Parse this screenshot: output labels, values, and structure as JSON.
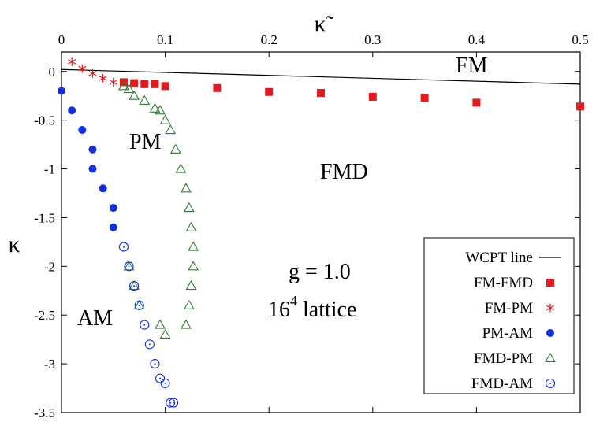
{
  "chart_data": {
    "type": "scatter",
    "title": "",
    "xlabel": "κ̃",
    "ylabel": "κ",
    "xlim": [
      0,
      0.5
    ],
    "ylim": [
      -3.5,
      0.2
    ],
    "xticks": [
      "0",
      "0.1",
      "0.2",
      "0.3",
      "0.4",
      "0.5"
    ],
    "yticks": [
      "0",
      "-0.5",
      "-1",
      "-1.5",
      "-2",
      "-2.5",
      "-3",
      "-3.5"
    ],
    "x_axis_position": "top",
    "grid": false,
    "legend_position": "bottom-right",
    "region_labels": [
      "FM",
      "FMD",
      "PM",
      "AM"
    ],
    "annotation_line1": "g = 1.0",
    "annotation_lattice": "16",
    "annotation_superscript": "4",
    "annotation_lattice_suffix": " lattice",
    "series": [
      {
        "name": "WCPT line",
        "marker": "line",
        "color": "#000000",
        "x": [
          0,
          0.5
        ],
        "y": [
          0.02,
          -0.13
        ]
      },
      {
        "name": "FM-FMD",
        "marker": "filled-square",
        "color": "#e41a1c",
        "x": [
          0.06,
          0.07,
          0.08,
          0.09,
          0.1,
          0.15,
          0.2,
          0.25,
          0.3,
          0.35,
          0.4,
          0.5
        ],
        "y": [
          -0.11,
          -0.12,
          -0.13,
          -0.13,
          -0.15,
          -0.17,
          -0.21,
          -0.22,
          -0.26,
          -0.27,
          -0.32,
          -0.36
        ]
      },
      {
        "name": "FM-PM",
        "marker": "asterisk",
        "color": "#e41a1c",
        "x": [
          0.01,
          0.02,
          0.03,
          0.04,
          0.05
        ],
        "y": [
          0.1,
          0.03,
          -0.02,
          -0.07,
          -0.11
        ]
      },
      {
        "name": "PM-AM",
        "marker": "filled-circle",
        "color": "#1030e0",
        "x": [
          0.0,
          0.01,
          0.02,
          0.03,
          0.03,
          0.04,
          0.05,
          0.05
        ],
        "y": [
          -0.2,
          -0.4,
          -0.6,
          -0.8,
          -1.0,
          -1.2,
          -1.4,
          -1.6
        ]
      },
      {
        "name": "FMD-PM",
        "marker": "open-triangle",
        "color": "#2e7d32",
        "x": [
          0.06,
          0.065,
          0.07,
          0.08,
          0.09,
          0.095,
          0.1,
          0.105,
          0.11,
          0.115,
          0.12,
          0.123,
          0.125,
          0.127,
          0.127,
          0.125,
          0.123,
          0.12,
          0.1,
          0.095,
          0.075,
          0.07,
          0.065
        ],
        "y": [
          -0.15,
          -0.18,
          -0.25,
          -0.3,
          -0.38,
          -0.4,
          -0.5,
          -0.6,
          -0.8,
          -1.0,
          -1.2,
          -1.4,
          -1.6,
          -1.8,
          -2.0,
          -2.2,
          -2.4,
          -2.6,
          -2.7,
          -2.6,
          -2.4,
          -2.2,
          -2.0
        ]
      },
      {
        "name": "FMD-AM",
        "marker": "open-circle-dot",
        "color": "#1030e0",
        "x": [
          0.06,
          0.065,
          0.07,
          0.075,
          0.08,
          0.085,
          0.09,
          0.095,
          0.1,
          0.105,
          0.108
        ],
        "y": [
          -1.8,
          -2.0,
          -2.2,
          -2.4,
          -2.6,
          -2.8,
          -3.0,
          -3.15,
          -3.2,
          -3.4,
          -3.4
        ]
      }
    ]
  }
}
